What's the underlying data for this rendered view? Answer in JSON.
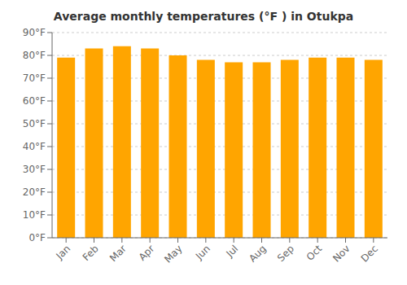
{
  "chart_data": {
    "type": "bar",
    "title": "Average monthly temperatures (°F ) in Otukpa",
    "categories": [
      "Jan",
      "Feb",
      "Mar",
      "Apr",
      "May",
      "Jun",
      "Jul",
      "Aug",
      "Sep",
      "Oct",
      "Nov",
      "Dec"
    ],
    "values": [
      79,
      83,
      84,
      83,
      80,
      78,
      77,
      77,
      78,
      79,
      79,
      78
    ],
    "color": "#FFA500",
    "ylim": [
      0,
      90
    ],
    "yticks": [
      {
        "value": 0,
        "label": "0°F"
      },
      {
        "value": 10,
        "label": "10°F"
      },
      {
        "value": 20,
        "label": "20°F"
      },
      {
        "value": 30,
        "label": "30°F"
      },
      {
        "value": 40,
        "label": "40°F"
      },
      {
        "value": 50,
        "label": "50°F"
      },
      {
        "value": 60,
        "label": "60°F"
      },
      {
        "value": 70,
        "label": "70°F"
      },
      {
        "value": 80,
        "label": "80°F"
      },
      {
        "value": 90,
        "label": "90°F"
      }
    ],
    "grid": true
  }
}
